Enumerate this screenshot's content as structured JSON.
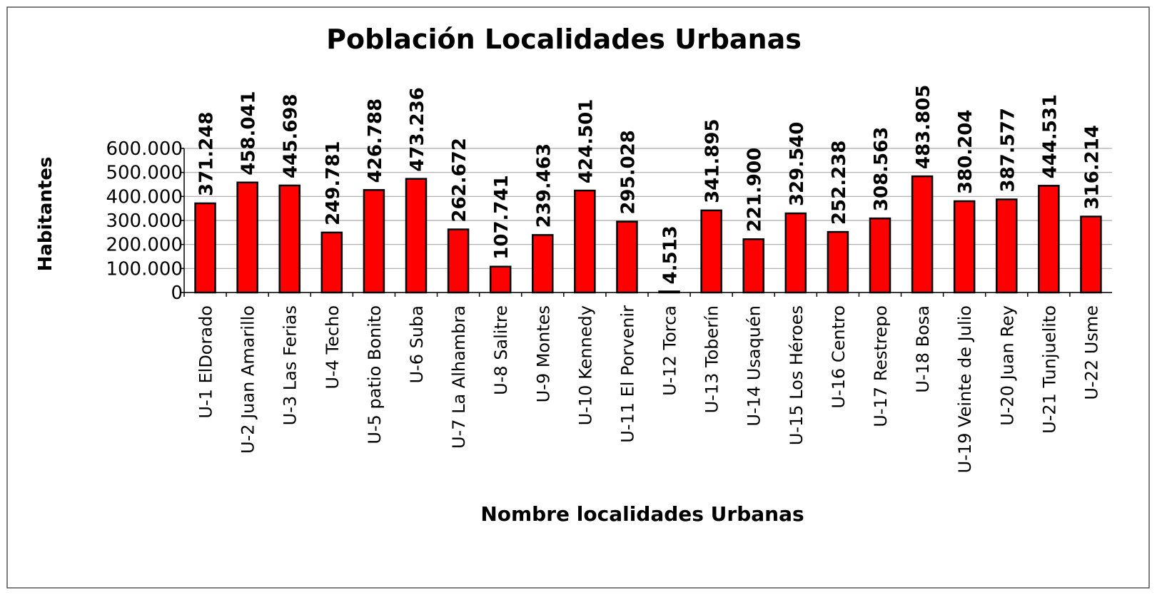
{
  "chart_data": {
    "type": "bar",
    "title": "Población Localidades Urbanas",
    "x_label": "Nombre localidades Urbanas",
    "y_label": "Habitantes",
    "categories": [
      "U-1 ElDorado",
      "U-2  Juan Amarillo",
      "U-3 Las Ferias",
      "U-4 Techo",
      "U-5 patio Bonito",
      "U-6 Suba",
      "U-7 La Alhambra",
      "U-8 Salitre",
      "U-9 Montes",
      "U-10 Kennedy",
      "U-11 El Porvenir",
      "U-12 Torca",
      "U-13 Toberín",
      "U-14 Usaquén",
      "U-15 Los Héroes",
      "U-16 Centro",
      "U-17 Restrepo",
      "U-18 Bosa",
      "U-19 Veinte de Julio",
      "U-20  Juan Rey",
      "U-21 Tunjuelito",
      "U-22 Usme"
    ],
    "values": [
      371248,
      458041,
      445698,
      249781,
      426788,
      473236,
      262672,
      107741,
      239463,
      424501,
      295028,
      4513,
      341895,
      221900,
      329540,
      252238,
      308563,
      483805,
      380204,
      387577,
      444531,
      316214
    ],
    "value_labels": [
      "371.248",
      "458.041",
      "445.698",
      "249.781",
      "426.788",
      "473.236",
      "262.672",
      "107.741",
      "239.463",
      "424.501",
      "295.028",
      "4.513",
      "341.895",
      "221.900",
      "329.540",
      "252.238",
      "308.563",
      "483.805",
      "380.204",
      "387.577",
      "444.531",
      "316.214"
    ],
    "color": "#ff0000",
    "ylim": [
      0,
      600000
    ],
    "yticks": [
      0,
      {
        "value": 100000,
        "label": "100.000"
      },
      {
        "value": 200000,
        "label": "200.000"
      },
      {
        "value": 300000,
        "label": "300.000"
      },
      {
        "value": 400000,
        "label": "400.000"
      },
      {
        "value": 500000,
        "label": "500.000"
      },
      {
        "value": 600000,
        "label": "600.000"
      }
    ],
    "grid": true
  }
}
